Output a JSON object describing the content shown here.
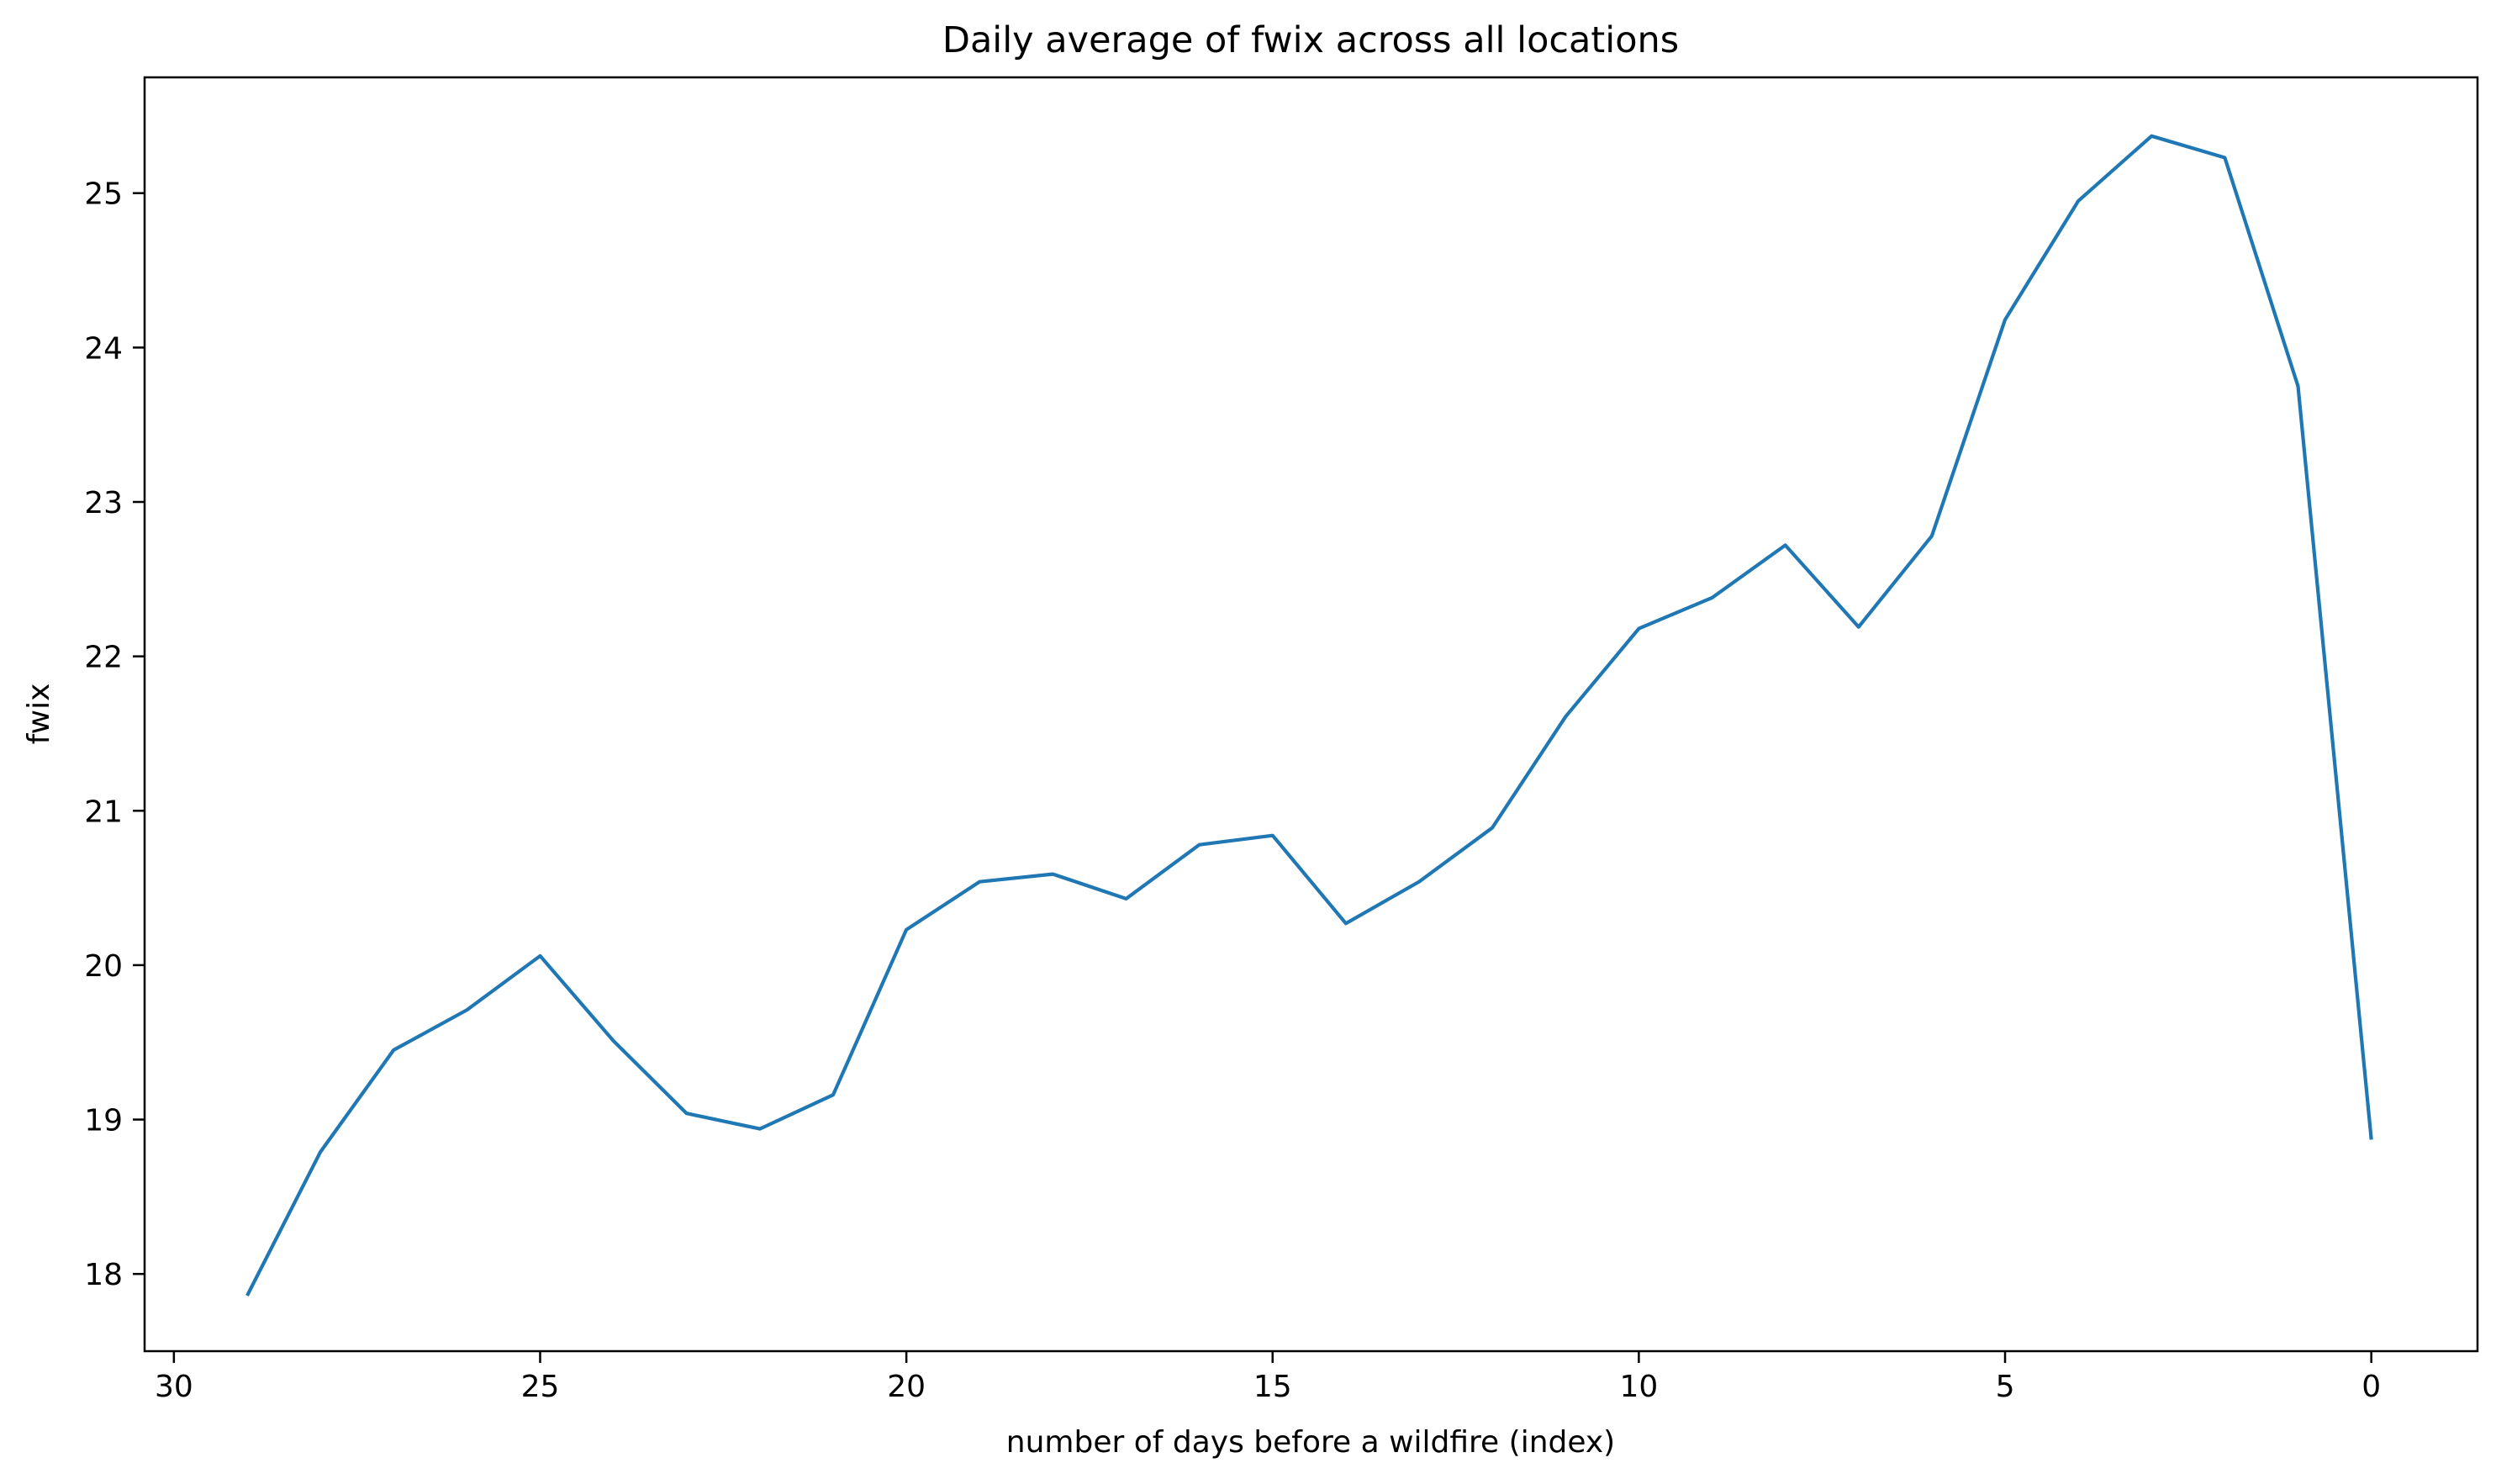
{
  "chart_data": {
    "type": "line",
    "title": "Daily average of fwix across all locations",
    "xlabel": "number of days before a wildfire (index)",
    "ylabel": "fwix",
    "xlim": [
      30.4,
      -1.45
    ],
    "ylim": [
      17.5,
      25.75
    ],
    "x_ticks": [
      30,
      25,
      20,
      15,
      10,
      5,
      0
    ],
    "y_ticks": [
      18,
      19,
      20,
      21,
      22,
      23,
      24,
      25
    ],
    "grid": false,
    "series": [
      {
        "color": "#1f77b4",
        "x": [
          29,
          28,
          27,
          26,
          25,
          24,
          23,
          22,
          21,
          20,
          19,
          18,
          17,
          16,
          15,
          14,
          13,
          12,
          11,
          10,
          9,
          8,
          7,
          6,
          5,
          4,
          3,
          2,
          1,
          0
        ],
        "y": [
          17.86,
          18.79,
          19.45,
          19.71,
          20.06,
          19.51,
          19.04,
          18.94,
          19.16,
          20.23,
          20.54,
          20.59,
          20.43,
          20.78,
          20.84,
          20.27,
          20.54,
          20.89,
          21.61,
          22.18,
          22.38,
          22.72,
          22.19,
          22.78,
          24.18,
          24.95,
          25.37,
          25.23,
          23.75,
          18.87
        ]
      }
    ]
  }
}
